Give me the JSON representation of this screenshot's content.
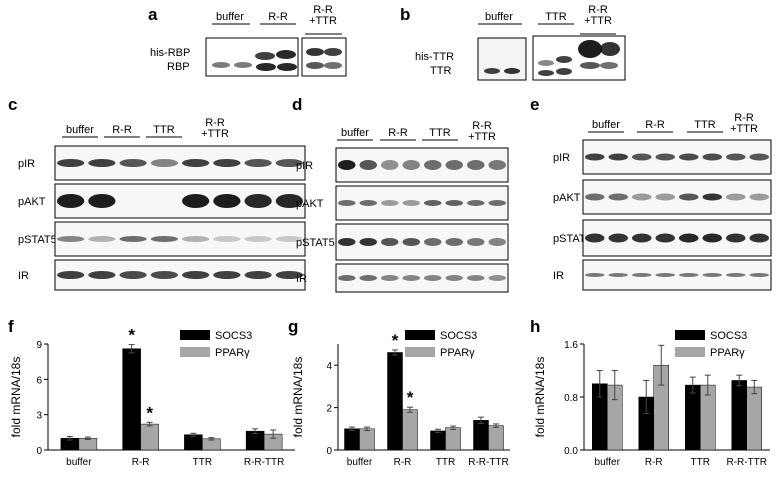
{
  "panels": {
    "a": {
      "letter": "a",
      "lanes": [
        "buffer",
        "R-R",
        "R-R\n+TTR"
      ],
      "rows": [
        "his-RBP",
        "RBP"
      ]
    },
    "b": {
      "letter": "b",
      "lanes": [
        "buffer",
        "TTR",
        "R-R\n+TTR"
      ],
      "rows": [
        "his-TTR",
        "TTR"
      ]
    },
    "c": {
      "letter": "c",
      "lanes": [
        "buffer",
        "R-R",
        "TTR",
        "R-R\n+TTR"
      ],
      "rows": [
        "pIR",
        "pAKT",
        "pSTAT5",
        "IR"
      ]
    },
    "d": {
      "letter": "d",
      "lanes": [
        "buffer",
        "R-R",
        "TTR",
        "R-R\n+TTR"
      ],
      "rows": [
        "pIR",
        "pAKT",
        "pSTAT5",
        "IR"
      ]
    },
    "e": {
      "letter": "e",
      "lanes": [
        "buffer",
        "R-R",
        "TTR",
        "R-R\n+TTR"
      ],
      "rows": [
        "pIR",
        "pAKT",
        "pSTAT5",
        "IR"
      ]
    }
  },
  "colors": {
    "SOCS3": "#000000",
    "PPARg": "#a6a6a6"
  },
  "chart_data": [
    {
      "panel": "f",
      "type": "bar",
      "ylabel": "fold mRNA/18s",
      "categories": [
        "buffer",
        "R-R",
        "TTR",
        "R-R-TTR"
      ],
      "ylim": [
        0,
        9
      ],
      "yticks": [
        "0",
        "3",
        "6",
        "9"
      ],
      "series": [
        {
          "name": "SOCS3",
          "values": [
            1.0,
            8.6,
            1.3,
            1.6
          ],
          "errors": [
            0.15,
            0.35,
            0.12,
            0.2
          ]
        },
        {
          "name": "PPARγ",
          "values": [
            1.0,
            2.2,
            0.95,
            1.35
          ],
          "errors": [
            0.1,
            0.15,
            0.1,
            0.35
          ]
        }
      ],
      "annotations": [
        "*",
        "*"
      ],
      "legend": "top-right"
    },
    {
      "panel": "g",
      "type": "bar",
      "ylabel": "fold mRNA/18s",
      "categories": [
        "buffer",
        "R-R",
        "TTR",
        "R-R-TTR"
      ],
      "ylim": [
        0,
        5
      ],
      "yticks": [
        "0",
        "2",
        "4"
      ],
      "series": [
        {
          "name": "SOCS3",
          "values": [
            1.0,
            4.6,
            0.9,
            1.4
          ],
          "errors": [
            0.08,
            0.12,
            0.08,
            0.15
          ]
        },
        {
          "name": "PPARγ",
          "values": [
            1.0,
            1.9,
            1.05,
            1.15
          ],
          "errors": [
            0.08,
            0.12,
            0.08,
            0.08
          ]
        }
      ],
      "annotations": [
        "*",
        "*"
      ],
      "legend": "top-right"
    },
    {
      "panel": "h",
      "type": "bar",
      "ylabel": "fold mRNA/18s",
      "categories": [
        "buffer",
        "R-R",
        "TTR",
        "R-R-TTR"
      ],
      "ylim": [
        0,
        1.6
      ],
      "yticks": [
        "0.0",
        "0.8",
        "1.6"
      ],
      "series": [
        {
          "name": "SOCS3",
          "values": [
            1.0,
            0.8,
            0.98,
            1.05
          ],
          "errors": [
            0.2,
            0.25,
            0.12,
            0.08
          ]
        },
        {
          "name": "PPARγ",
          "values": [
            0.98,
            1.28,
            0.98,
            0.95
          ],
          "errors": [
            0.22,
            0.3,
            0.15,
            0.1
          ]
        }
      ],
      "annotations": [],
      "legend": "top-right"
    }
  ]
}
